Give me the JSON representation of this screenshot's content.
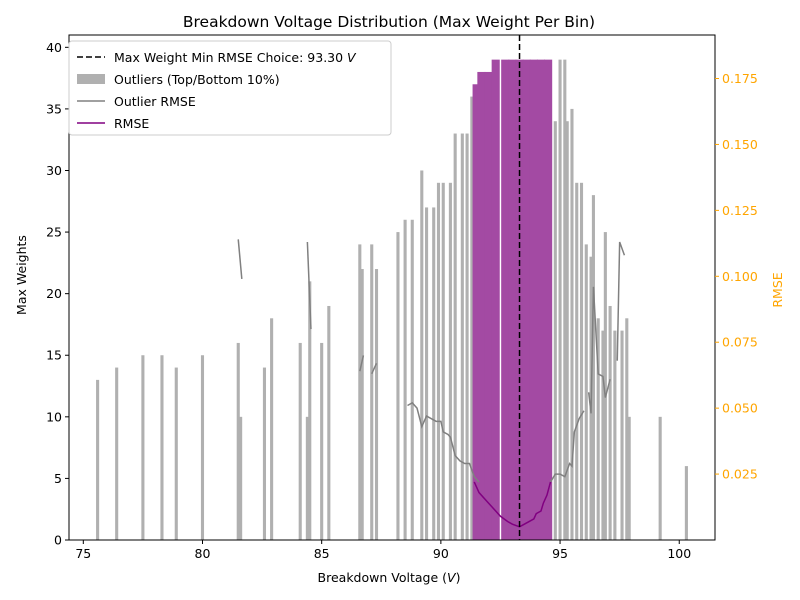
{
  "chart_data": {
    "type": "bar",
    "title": "Breakdown Voltage Distribution (Max Weight Per Bin)",
    "xlabel_text": "Breakdown Voltage (",
    "xlabel_unit": "V",
    "xlabel_close": ")",
    "ylabel": "Max Weights",
    "ylabel_right": "RMSE",
    "xlim": [
      74.4,
      101.5
    ],
    "ylim": [
      0,
      41
    ],
    "ylim_right": [
      0.0,
      0.1915
    ],
    "xticks": [
      75,
      80,
      85,
      90,
      95,
      100
    ],
    "yticks": [
      0,
      5,
      10,
      15,
      20,
      25,
      30,
      35,
      40
    ],
    "yticks_right": [
      0.025,
      0.05,
      0.075,
      0.1,
      0.125,
      0.15,
      0.175
    ],
    "yticks_right_labels": [
      "0.025",
      "0.050",
      "0.075",
      "0.100",
      "0.125",
      "0.150",
      "0.175"
    ],
    "legend_position": "upper left",
    "legend": [
      {
        "label": "Max Weight Min RMSE Choice: 93.30 ",
        "label_unit": "V",
        "style": "dashed-black-line"
      },
      {
        "label": "Outliers (Top/Bottom 10%)",
        "style": "gray-patch"
      },
      {
        "label": "Outlier RMSE",
        "style": "gray-line"
      },
      {
        "label": "RMSE",
        "style": "purple-line"
      }
    ],
    "vline_x": 93.3,
    "colors": {
      "outlier_bar": "#b0b0b0",
      "selected_bar": "#a34aa3",
      "outlier_rmse": "#808080",
      "rmse": "#800080",
      "vline": "#000000",
      "right_axis": "#FFA500"
    },
    "outlier_bars": [
      [
        75.6,
        13
      ],
      [
        76.4,
        14
      ],
      [
        77.5,
        15
      ],
      [
        78.3,
        15
      ],
      [
        78.9,
        14
      ],
      [
        80.0,
        15
      ],
      [
        81.5,
        16
      ],
      [
        81.6,
        10
      ],
      [
        82.6,
        14
      ],
      [
        82.9,
        18
      ],
      [
        84.1,
        16
      ],
      [
        84.4,
        10
      ],
      [
        84.5,
        21
      ],
      [
        85.0,
        16
      ],
      [
        85.3,
        19
      ],
      [
        86.6,
        24
      ],
      [
        86.7,
        22
      ],
      [
        87.1,
        24
      ],
      [
        87.3,
        22
      ],
      [
        88.2,
        25
      ],
      [
        88.5,
        26
      ],
      [
        88.8,
        26
      ],
      [
        89.2,
        30
      ],
      [
        89.4,
        27
      ],
      [
        89.7,
        27
      ],
      [
        89.9,
        29
      ],
      [
        90.1,
        29
      ],
      [
        90.4,
        29
      ],
      [
        90.6,
        33
      ],
      [
        90.9,
        33
      ],
      [
        91.1,
        33
      ],
      [
        91.3,
        36
      ],
      [
        91.5,
        36
      ],
      [
        91.6,
        37
      ],
      [
        91.8,
        37
      ],
      [
        94.6,
        34
      ],
      [
        94.8,
        34
      ],
      [
        95.0,
        39
      ],
      [
        95.2,
        39
      ],
      [
        95.3,
        34
      ],
      [
        95.5,
        35
      ],
      [
        95.7,
        29
      ],
      [
        95.9,
        29
      ],
      [
        96.1,
        24
      ],
      [
        96.3,
        23
      ],
      [
        96.4,
        28
      ],
      [
        96.6,
        18
      ],
      [
        96.8,
        17
      ],
      [
        96.9,
        25
      ],
      [
        97.1,
        19
      ],
      [
        97.3,
        17
      ],
      [
        97.6,
        17
      ],
      [
        97.8,
        18
      ],
      [
        97.9,
        10
      ],
      [
        99.2,
        10
      ],
      [
        100.3,
        6
      ]
    ],
    "selected_bars": [
      [
        91.5,
        37
      ],
      [
        91.7,
        38
      ],
      [
        92.0,
        38
      ],
      [
        92.3,
        39
      ],
      [
        92.7,
        39
      ],
      [
        93.0,
        39
      ],
      [
        93.3,
        39
      ],
      [
        93.6,
        39
      ],
      [
        93.9,
        39
      ],
      [
        94.2,
        39
      ],
      [
        94.5,
        39
      ]
    ],
    "bar_width": 0.13,
    "selected_bar_width": 0.34,
    "rmse_line": [
      [
        91.4,
        0.022
      ],
      [
        91.6,
        0.018
      ],
      [
        91.9,
        0.015
      ],
      [
        92.2,
        0.012
      ],
      [
        92.5,
        0.009
      ],
      [
        92.8,
        0.007
      ],
      [
        93.0,
        0.006
      ],
      [
        93.3,
        0.005
      ],
      [
        93.5,
        0.006
      ],
      [
        93.7,
        0.007
      ],
      [
        93.9,
        0.008
      ],
      [
        94.0,
        0.01
      ],
      [
        94.2,
        0.011
      ],
      [
        94.3,
        0.014
      ],
      [
        94.45,
        0.017
      ],
      [
        94.6,
        0.022
      ]
    ],
    "outlier_rmse_segments": [
      [
        [
          81.5,
          0.114
        ],
        [
          81.65,
          0.099
        ]
      ],
      [
        [
          84.4,
          0.113
        ],
        [
          84.55,
          0.08
        ]
      ],
      [
        [
          86.6,
          0.064
        ],
        [
          86.75,
          0.07
        ]
      ],
      [
        [
          87.1,
          0.063
        ],
        [
          87.3,
          0.067
        ]
      ],
      [
        [
          88.6,
          0.051
        ],
        [
          88.8,
          0.052
        ],
        [
          89.0,
          0.05
        ],
        [
          89.2,
          0.043
        ],
        [
          89.4,
          0.047
        ],
        [
          89.6,
          0.046
        ],
        [
          89.8,
          0.045
        ],
        [
          90.0,
          0.045
        ],
        [
          90.1,
          0.041
        ],
        [
          90.3,
          0.04
        ],
        [
          90.4,
          0.039
        ],
        [
          90.6,
          0.032
        ],
        [
          90.8,
          0.03
        ],
        [
          91.0,
          0.029
        ],
        [
          91.2,
          0.029
        ],
        [
          91.4,
          0.024
        ],
        [
          91.6,
          0.022
        ]
      ],
      [
        [
          94.6,
          0.022
        ],
        [
          94.8,
          0.025
        ],
        [
          95.0,
          0.025
        ],
        [
          95.2,
          0.024
        ],
        [
          95.4,
          0.029
        ],
        [
          95.5,
          0.028
        ],
        [
          95.6,
          0.041
        ],
        [
          95.8,
          0.046
        ],
        [
          96.0,
          0.049
        ]
      ],
      [
        [
          96.2,
          0.056
        ],
        [
          96.3,
          0.048
        ],
        [
          96.4,
          0.096
        ],
        [
          96.6,
          0.063
        ],
        [
          96.8,
          0.062
        ],
        [
          96.9,
          0.054
        ],
        [
          97.1,
          0.061
        ]
      ],
      [
        [
          97.4,
          0.068
        ],
        [
          97.5,
          0.113
        ],
        [
          97.7,
          0.108
        ]
      ]
    ]
  }
}
